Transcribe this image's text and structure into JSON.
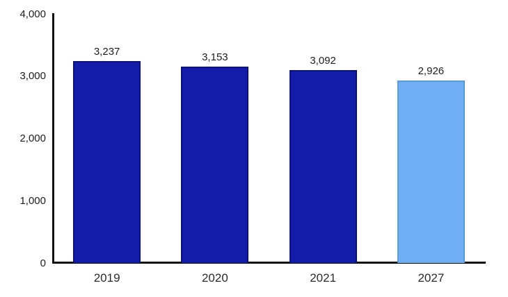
{
  "chart_data": {
    "type": "bar",
    "categories": [
      "2019",
      "2020",
      "2021",
      "2027"
    ],
    "values": [
      3237,
      3153,
      3092,
      2926
    ],
    "value_labels": [
      "3,237",
      "3,153",
      "3,092",
      "2,926"
    ],
    "series": [
      {
        "name": "annual-value",
        "values": [
          3237,
          3153,
          3092,
          2926
        ]
      }
    ],
    "title": "",
    "xlabel": "",
    "ylabel": "",
    "ylim": [
      0,
      4000
    ],
    "yticks": [
      0,
      1000,
      2000,
      3000,
      4000
    ],
    "ytick_labels": [
      "0",
      "1,000",
      "2,000",
      "3,000",
      "4,000"
    ],
    "grid": false,
    "legend": false,
    "bar_fill_colors": [
      "#121CA8",
      "#121CA8",
      "#121CA8",
      "#6FAEF3"
    ],
    "bar_border_colors": [
      "#0A1278",
      "#0A1278",
      "#0A1278",
      "#5B9BD5"
    ]
  },
  "colors": {
    "dark_bar": "#121CA8",
    "dark_bar_border": "#0A1278",
    "light_bar": "#6FAEF3",
    "light_bar_border": "#5B9BD5",
    "axis": "#111111",
    "text": "#1c1c1c",
    "background": "#ffffff"
  }
}
